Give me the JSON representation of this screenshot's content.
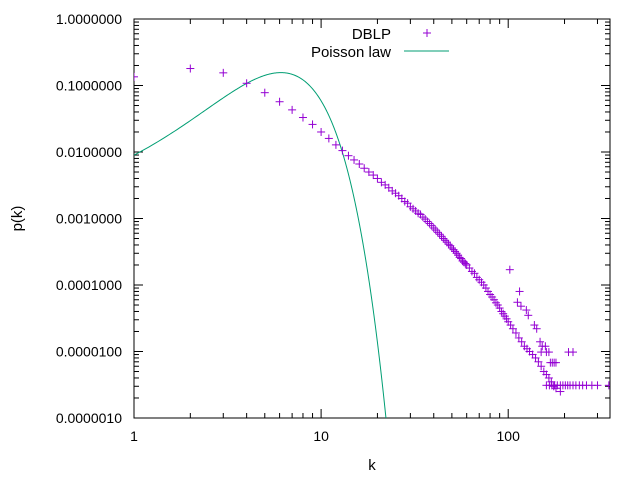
{
  "chart_data": {
    "type": "scatter",
    "xlabel": "k",
    "ylabel": "p(k)",
    "xscale": "log",
    "yscale": "log",
    "xlim": [
      1,
      350
    ],
    "ylim": [
      1e-06,
      1
    ],
    "grid": false,
    "legend_position": "top-right",
    "x_ticks": [
      {
        "value": 1,
        "label": "1"
      },
      {
        "value": 10,
        "label": "10"
      },
      {
        "value": 100,
        "label": "100"
      }
    ],
    "y_ticks": [
      {
        "value": 1e-06,
        "label": "0.0000010"
      },
      {
        "value": 1e-05,
        "label": "0.0000100"
      },
      {
        "value": 0.0001,
        "label": "0.0001000"
      },
      {
        "value": 0.001,
        "label": "0.0010000"
      },
      {
        "value": 0.01,
        "label": "0.0100000"
      },
      {
        "value": 0.1,
        "label": "0.1000000"
      },
      {
        "value": 1,
        "label": "1.0000000"
      }
    ],
    "series": [
      {
        "name": "DBLP",
        "marker": "plus",
        "color": "#9400d3",
        "points": [
          [
            1,
            0.135
          ],
          [
            2,
            0.18
          ],
          [
            3,
            0.155
          ],
          [
            4,
            0.108
          ],
          [
            5,
            0.078
          ],
          [
            6,
            0.057
          ],
          [
            7,
            0.043
          ],
          [
            8,
            0.033
          ],
          [
            9,
            0.026
          ],
          [
            10,
            0.02
          ],
          [
            11,
            0.016
          ],
          [
            12,
            0.0128
          ],
          [
            13,
            0.0105
          ],
          [
            14,
            0.0088
          ],
          [
            15,
            0.0076
          ],
          [
            16,
            0.0066
          ],
          [
            17,
            0.0057
          ],
          [
            18,
            0.005
          ],
          [
            19,
            0.0045
          ],
          [
            20,
            0.004
          ],
          [
            21,
            0.0035
          ],
          [
            22,
            0.0032
          ],
          [
            23,
            0.0029
          ],
          [
            24,
            0.0026
          ],
          [
            25,
            0.0024
          ],
          [
            26,
            0.0022
          ],
          [
            27,
            0.002
          ],
          [
            28,
            0.0018
          ],
          [
            29,
            0.0017
          ],
          [
            30,
            0.0015
          ],
          [
            31,
            0.0014
          ],
          [
            32,
            0.0013
          ],
          [
            33,
            0.0012
          ],
          [
            34,
            0.00115
          ],
          [
            35,
            0.00105
          ],
          [
            36,
            0.00098
          ],
          [
            37,
            0.0009
          ],
          [
            38,
            0.00084
          ],
          [
            39,
            0.00078
          ],
          [
            40,
            0.00072
          ],
          [
            41,
            0.00067
          ],
          [
            42,
            0.00062
          ],
          [
            43,
            0.00058
          ],
          [
            44,
            0.00054
          ],
          [
            45,
            0.0005
          ],
          [
            46,
            0.00047
          ],
          [
            47,
            0.00044
          ],
          [
            48,
            0.00041
          ],
          [
            49,
            0.00039
          ],
          [
            50,
            0.00036
          ],
          [
            51,
            0.00034
          ],
          [
            52,
            0.00032
          ],
          [
            53,
            0.0003
          ],
          [
            54,
            0.00028
          ],
          [
            55,
            0.00026
          ],
          [
            56,
            0.00025
          ],
          [
            57,
            0.00023
          ],
          [
            58,
            0.00022
          ],
          [
            59,
            0.00021
          ],
          [
            60,
            0.0002
          ],
          [
            62,
            0.00018
          ],
          [
            64,
            0.00016
          ],
          [
            66,
            0.00015
          ],
          [
            68,
            0.00013
          ],
          [
            70,
            0.00012
          ],
          [
            72,
            0.00011
          ],
          [
            74,
            0.0001
          ],
          [
            76,
            9e-05
          ],
          [
            78,
            8e-05
          ],
          [
            80,
            7.2e-05
          ],
          [
            82,
            6.6e-05
          ],
          [
            84,
            6e-05
          ],
          [
            86,
            5.4e-05
          ],
          [
            88,
            5e-05
          ],
          [
            90,
            4.5e-05
          ],
          [
            92,
            4e-05
          ],
          [
            94,
            3.7e-05
          ],
          [
            96,
            3.4e-05
          ],
          [
            98,
            3.1e-05
          ],
          [
            100,
            2.8e-05
          ],
          [
            103,
            2.5e-05
          ],
          [
            106,
            2.2e-05
          ],
          [
            110,
            1.9e-05
          ],
          [
            114,
            1.6e-05
          ],
          [
            118,
            1.4e-05
          ],
          [
            122,
            1.2e-05
          ],
          [
            126,
            1.1e-05
          ],
          [
            130,
            1e-05
          ],
          [
            135,
            9e-06
          ],
          [
            140,
            8e-06
          ],
          [
            145,
            7e-06
          ],
          [
            150,
            6e-06
          ],
          [
            155,
            5e-06
          ],
          [
            160,
            4.5e-06
          ],
          [
            165,
            4e-06
          ],
          [
            170,
            3.5e-06
          ],
          [
            175,
            3e-06
          ],
          [
            180,
            2.8e-06
          ],
          [
            190,
            2.5e-06
          ],
          [
            102,
            0.00017
          ],
          [
            112,
            5.5e-05
          ],
          [
            117,
            4.8e-05
          ],
          [
            115,
            8e-05
          ],
          [
            125,
            4.2e-05
          ],
          [
            128,
            3.5e-05
          ],
          [
            138,
            2.5e-05
          ],
          [
            142,
            2.2e-05
          ],
          [
            148,
            1.4e-05
          ],
          [
            152,
            1.2e-05
          ],
          [
            158,
            1.2e-05
          ],
          [
            165,
            9.8e-06
          ],
          [
            210,
            9.8e-06
          ],
          [
            222,
            9.8e-06
          ],
          [
            168,
            6.8e-06
          ],
          [
            172,
            6.8e-06
          ],
          [
            176,
            6.8e-06
          ],
          [
            180,
            6.8e-06
          ],
          [
            150,
            9.8e-06
          ],
          [
            160,
            9.8e-06
          ],
          [
            160,
            3.1e-06
          ],
          [
            166,
            3.1e-06
          ],
          [
            171,
            3.1e-06
          ],
          [
            177,
            3.1e-06
          ],
          [
            183,
            3.1e-06
          ],
          [
            190,
            3.1e-06
          ],
          [
            196,
            3.1e-06
          ],
          [
            202,
            3.1e-06
          ],
          [
            208,
            3.1e-06
          ],
          [
            214,
            3.1e-06
          ],
          [
            222,
            3.1e-06
          ],
          [
            230,
            3.1e-06
          ],
          [
            240,
            3.1e-06
          ],
          [
            250,
            3.1e-06
          ],
          [
            262,
            3.1e-06
          ],
          [
            280,
            3.1e-06
          ],
          [
            300,
            3.1e-06
          ],
          [
            345,
            3.1e-06
          ]
        ]
      },
      {
        "name": "Poisson law",
        "type": "line",
        "color": "#009e73",
        "distribution": "poisson",
        "mean": 6.6,
        "points": [
          [
            1,
            0.0089
          ],
          [
            2,
            0.0293
          ],
          [
            3,
            0.0645
          ],
          [
            4,
            0.1064
          ],
          [
            5,
            0.1405
          ],
          [
            6,
            0.1545
          ],
          [
            7,
            0.1457
          ],
          [
            8,
            0.1202
          ],
          [
            9,
            0.0881
          ],
          [
            10,
            0.0582
          ],
          [
            11,
            0.0349
          ],
          [
            12,
            0.0192
          ],
          [
            13,
            0.0097
          ],
          [
            14,
            0.0046
          ],
          [
            15,
            0.002
          ],
          [
            16,
            0.00083
          ],
          [
            17,
            0.00032
          ],
          [
            18,
            0.00012
          ],
          [
            19,
            4.2e-05
          ],
          [
            20,
            1.4e-05
          ],
          [
            21,
            4.4e-06
          ],
          [
            22,
            1.3e-06
          ],
          [
            23,
            3.7e-07
          ]
        ]
      }
    ]
  }
}
